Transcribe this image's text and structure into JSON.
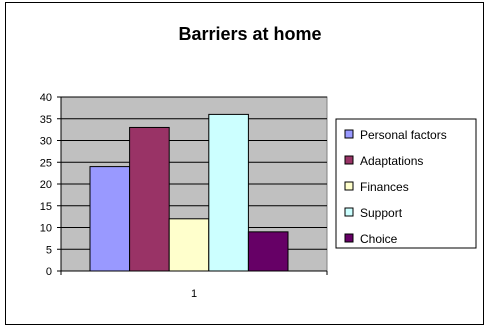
{
  "chart_data": {
    "type": "bar",
    "title": "Barriers at home",
    "categories": [
      "1"
    ],
    "series": [
      {
        "name": "Personal factors",
        "values": [
          24
        ],
        "color": "#9999ff"
      },
      {
        "name": "Adaptations",
        "values": [
          33
        ],
        "color": "#993366"
      },
      {
        "name": "Finances",
        "values": [
          12
        ],
        "color": "#ffffcc"
      },
      {
        "name": "Support",
        "values": [
          36
        ],
        "color": "#ccffff"
      },
      {
        "name": "Choice",
        "values": [
          9
        ],
        "color": "#660066"
      }
    ],
    "ylim": [
      0,
      40
    ],
    "yticks": [
      0,
      5,
      10,
      15,
      20,
      25,
      30,
      35,
      40
    ],
    "xlabel": "",
    "ylabel": "",
    "grid": true,
    "plot_background": "#c0c0c0",
    "legend_position": "right"
  }
}
